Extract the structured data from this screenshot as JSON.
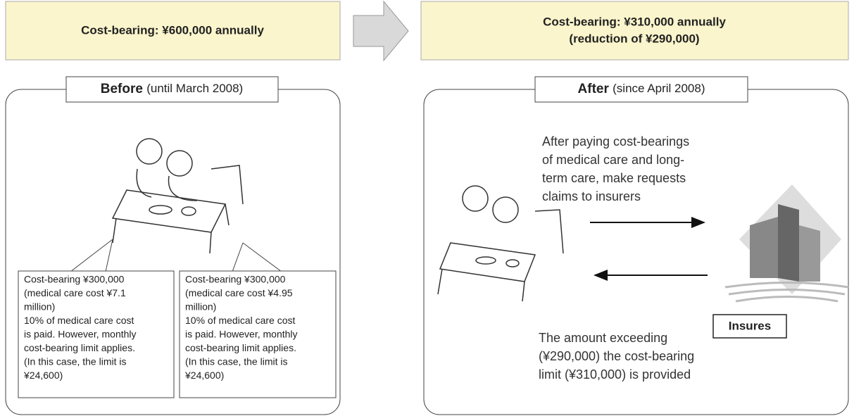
{
  "header_before": "Cost-bearing: ¥600,000 annually",
  "header_after": [
    "Cost-bearing: ¥310,000 annually",
    "(reduction of ¥290,000)"
  ],
  "before": {
    "label": "Before",
    "period": "(until March 2008)",
    "callouts": [
      [
        "Cost-bearing ¥300,000",
        "(medical care cost ¥7.1",
        "million)",
        "10% of medical care cost",
        "is paid. However, monthly",
        "cost-bearing limit applies.",
        "(In this case, the limit is",
        "¥24,600)"
      ],
      [
        "Cost-bearing ¥300,000",
        "(medical care cost ¥4.95",
        "million)",
        "10% of medical care cost",
        "is paid. However, monthly",
        "cost-bearing limit applies.",
        "(In this case, the limit is",
        "¥24,600)"
      ]
    ]
  },
  "after": {
    "label": "After",
    "period": "(since April 2008)",
    "request_lines": [
      "After paying cost-bearings",
      "of medical care and long-",
      "term care, make requests",
      "claims to insurers"
    ],
    "provided_lines": [
      "The amount exceeding",
      "(¥290,000) the cost-bearing",
      "limit (¥310,000) is provided"
    ],
    "insurer": "Insures"
  }
}
